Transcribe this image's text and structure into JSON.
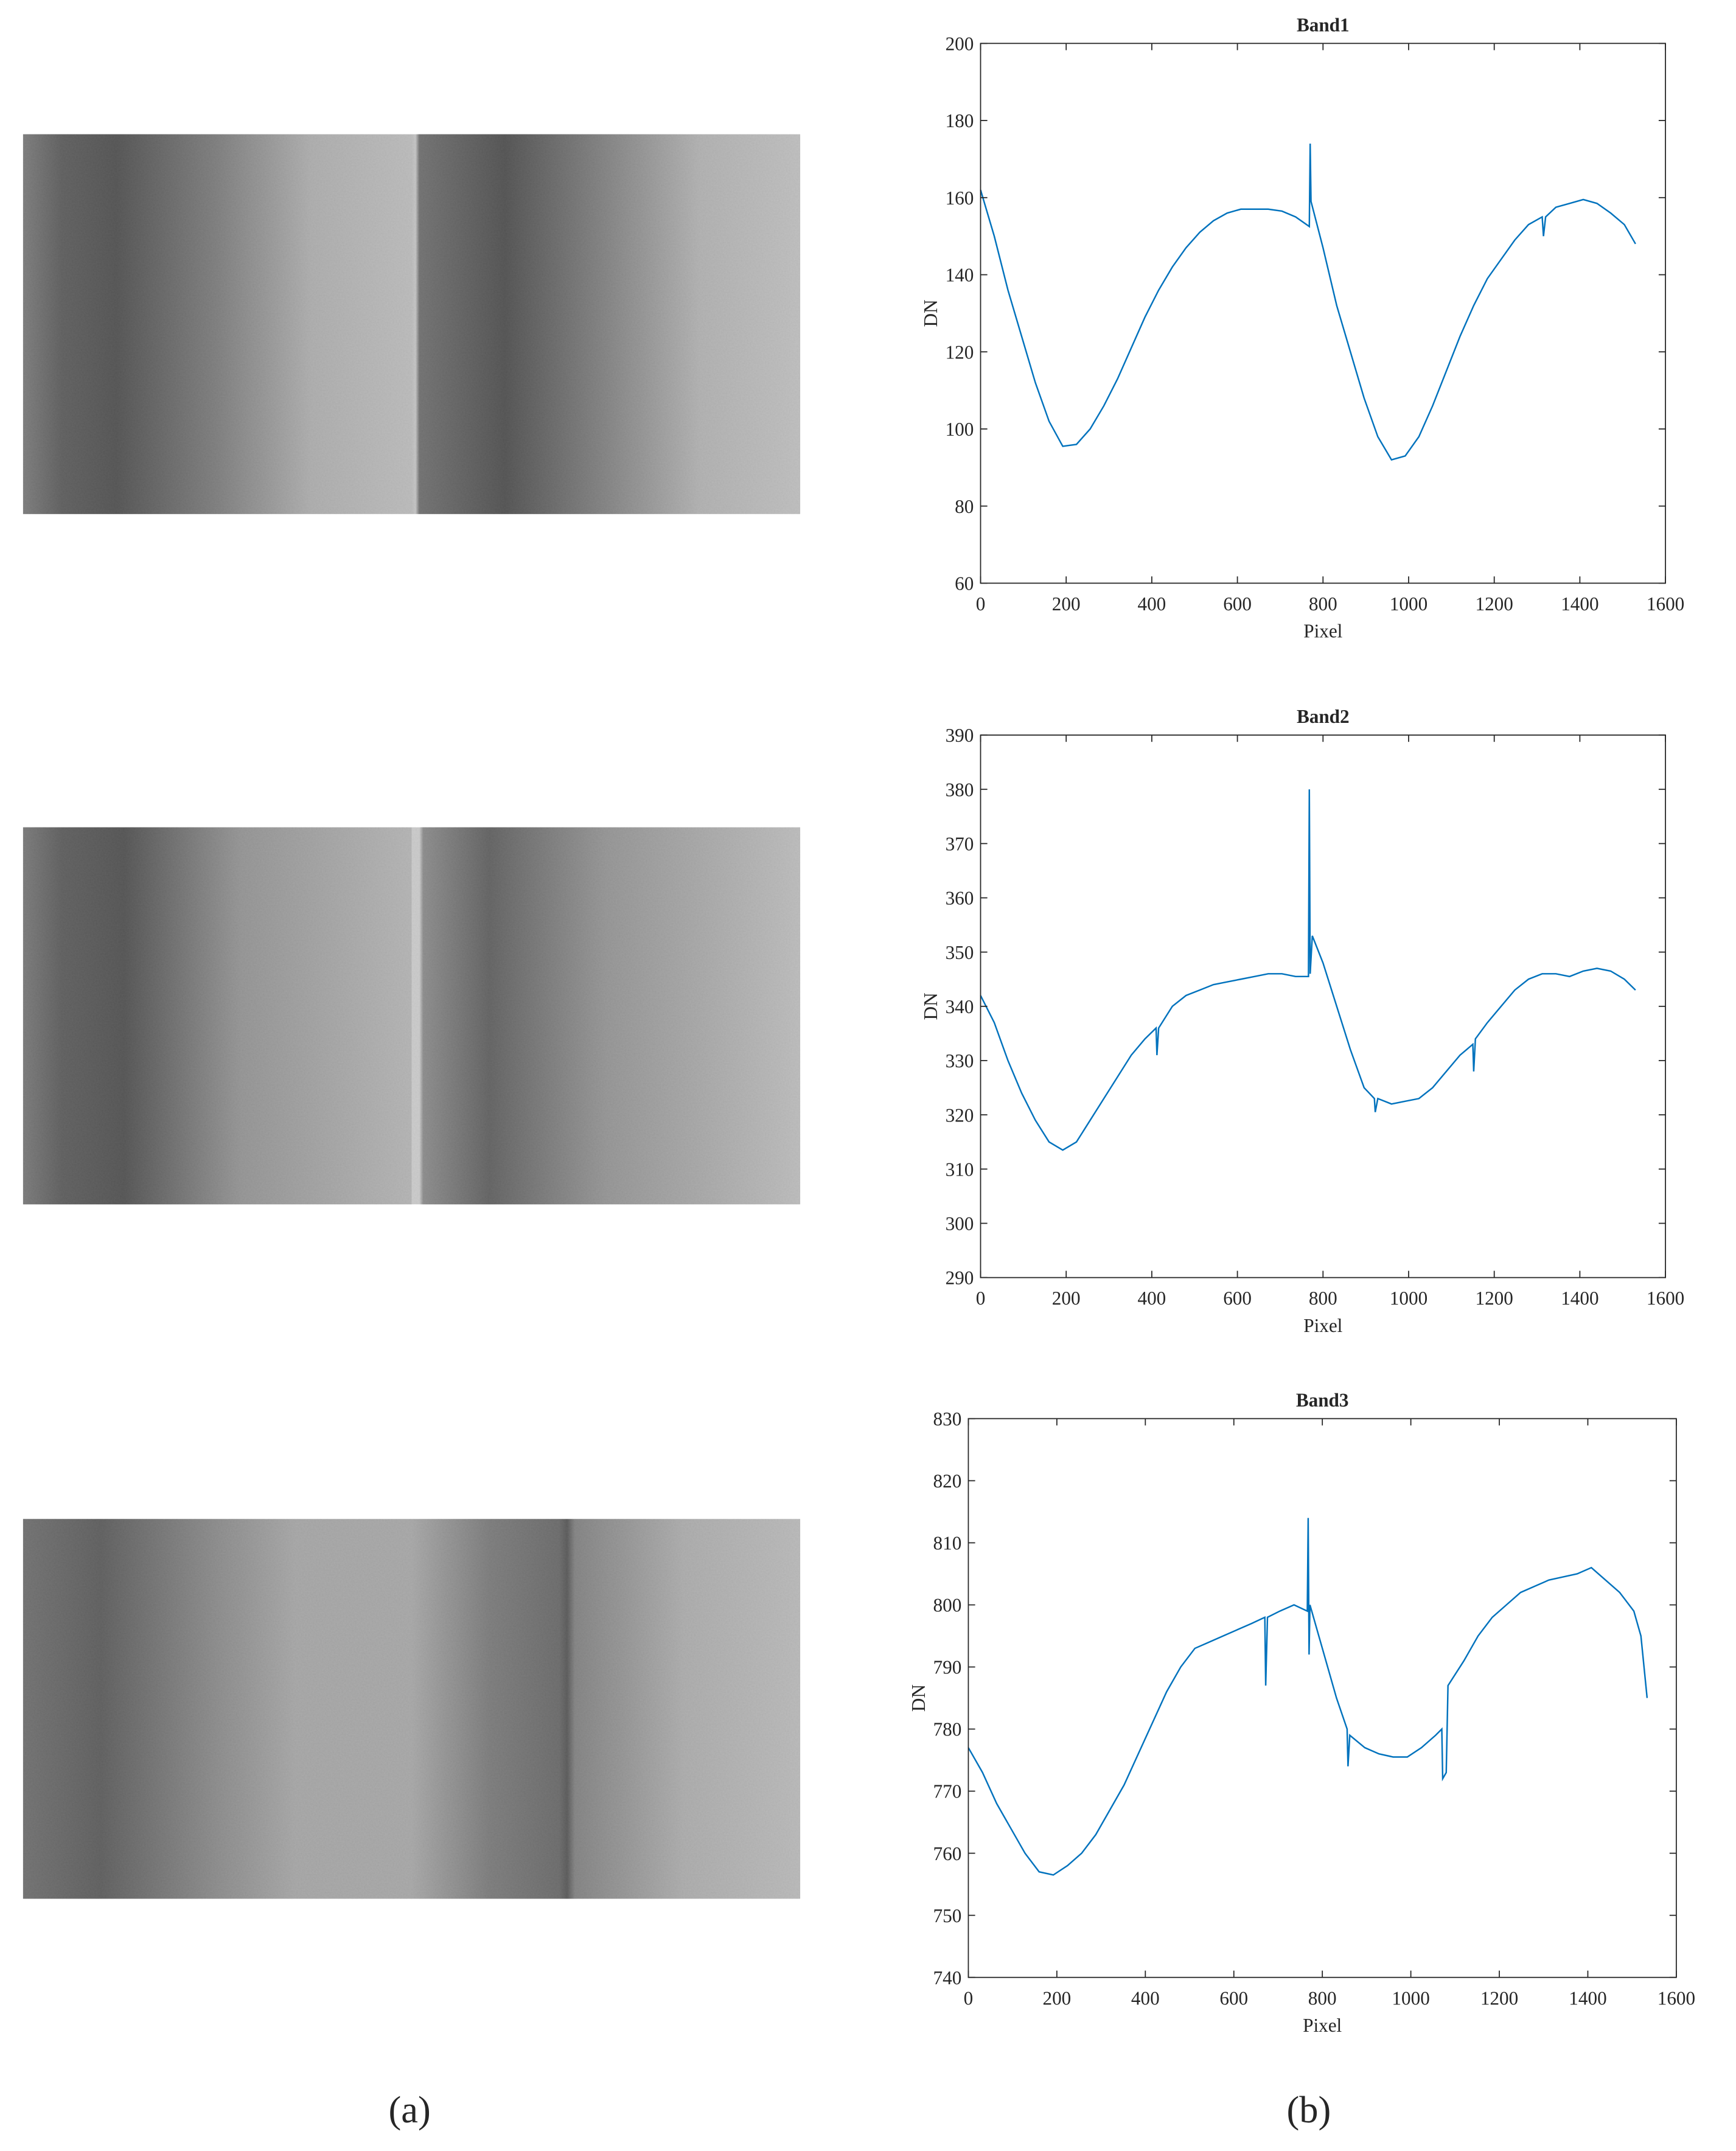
{
  "chart_data": [
    {
      "type": "line",
      "title": "Band1",
      "xlabel": "Pixel",
      "ylabel": "DN",
      "xlim": [
        0,
        1600
      ],
      "xticks": [
        0,
        200,
        400,
        600,
        800,
        1000,
        1200,
        1400,
        1600
      ],
      "ylim": [
        60,
        200
      ],
      "yticks": [
        60,
        80,
        100,
        120,
        140,
        160,
        180,
        200
      ],
      "color": "#0072bd",
      "x": [
        0,
        32,
        64,
        96,
        128,
        160,
        192,
        224,
        256,
        288,
        320,
        352,
        384,
        416,
        448,
        480,
        512,
        544,
        576,
        608,
        640,
        672,
        704,
        736,
        768,
        770,
        772,
        800,
        832,
        864,
        896,
        928,
        960,
        992,
        1024,
        1056,
        1088,
        1120,
        1152,
        1184,
        1216,
        1248,
        1280,
        1312,
        1315,
        1320,
        1344,
        1376,
        1408,
        1440,
        1472,
        1504,
        1530
      ],
      "values": [
        162,
        150,
        136,
        124,
        112,
        102,
        95.5,
        96,
        100,
        106,
        113,
        121,
        129,
        136,
        142,
        147,
        151,
        154,
        156,
        157,
        157,
        157,
        156.5,
        155,
        152.5,
        174,
        159,
        147,
        132,
        120,
        108,
        98,
        92,
        93,
        98,
        106,
        115,
        124,
        132,
        139,
        144,
        149,
        153,
        155,
        150,
        155,
        157.5,
        158.5,
        159.5,
        158.5,
        156,
        153,
        148
      ]
    },
    {
      "type": "line",
      "title": "Band2",
      "xlabel": "Pixel",
      "ylabel": "DN",
      "xlim": [
        0,
        1600
      ],
      "xticks": [
        0,
        200,
        400,
        600,
        800,
        1000,
        1200,
        1400,
        1600
      ],
      "ylim": [
        290,
        390
      ],
      "yticks": [
        290,
        300,
        310,
        320,
        330,
        340,
        350,
        360,
        370,
        380,
        390
      ],
      "color": "#0072bd",
      "x": [
        0,
        32,
        64,
        96,
        128,
        160,
        192,
        224,
        256,
        288,
        320,
        352,
        384,
        410,
        412,
        416,
        448,
        480,
        512,
        544,
        576,
        608,
        640,
        672,
        704,
        736,
        766,
        768,
        770,
        775,
        800,
        832,
        864,
        896,
        920,
        922,
        928,
        960,
        992,
        1024,
        1056,
        1088,
        1120,
        1150,
        1152,
        1156,
        1184,
        1216,
        1248,
        1280,
        1312,
        1344,
        1376,
        1408,
        1440,
        1472,
        1504,
        1530
      ],
      "values": [
        342,
        337,
        330,
        324,
        319,
        315,
        313.5,
        315,
        319,
        323,
        327,
        331,
        334,
        336,
        331,
        336,
        340,
        342,
        343,
        344,
        344.5,
        345,
        345.5,
        346,
        346,
        345.5,
        345.5,
        380,
        346,
        353,
        348,
        340,
        332,
        325,
        323,
        320.5,
        323,
        322,
        322.5,
        323,
        325,
        328,
        331,
        333,
        328,
        334,
        337,
        340,
        343,
        345,
        346,
        346,
        345.5,
        346.5,
        347,
        346.5,
        345,
        343
      ]
    },
    {
      "type": "line",
      "title": "Band3",
      "xlabel": "Pixel",
      "ylabel": "DN",
      "xlim": [
        0,
        1600
      ],
      "xticks": [
        0,
        200,
        400,
        600,
        800,
        1000,
        1200,
        1400,
        1600
      ],
      "ylim": [
        740,
        830
      ],
      "yticks": [
        740,
        750,
        760,
        770,
        780,
        790,
        800,
        810,
        820,
        830
      ],
      "color": "#0072bd",
      "x": [
        0,
        32,
        64,
        96,
        128,
        160,
        192,
        224,
        256,
        288,
        320,
        352,
        384,
        416,
        448,
        480,
        512,
        544,
        576,
        608,
        640,
        670,
        672,
        676,
        704,
        736,
        766,
        768,
        770,
        772,
        800,
        832,
        856,
        858,
        862,
        896,
        928,
        960,
        992,
        1024,
        1056,
        1070,
        1072,
        1080,
        1084,
        1120,
        1152,
        1184,
        1216,
        1248,
        1280,
        1312,
        1344,
        1376,
        1408,
        1440,
        1472,
        1504,
        1520,
        1534
      ],
      "values": [
        777,
        773,
        768,
        764,
        760,
        757,
        756.5,
        758,
        760,
        763,
        767,
        771,
        776,
        781,
        786,
        790,
        793,
        794,
        795,
        796,
        797,
        798,
        787,
        798,
        799,
        800,
        799,
        814,
        792,
        800,
        793,
        785,
        780,
        774,
        779,
        777,
        776,
        775.5,
        775.5,
        777,
        779,
        780,
        772,
        773,
        787,
        791,
        795,
        798,
        800,
        802,
        803,
        804,
        804.5,
        805,
        806,
        804,
        802,
        799,
        795,
        785
      ]
    }
  ],
  "captions": [
    "(a)",
    "(b)"
  ]
}
